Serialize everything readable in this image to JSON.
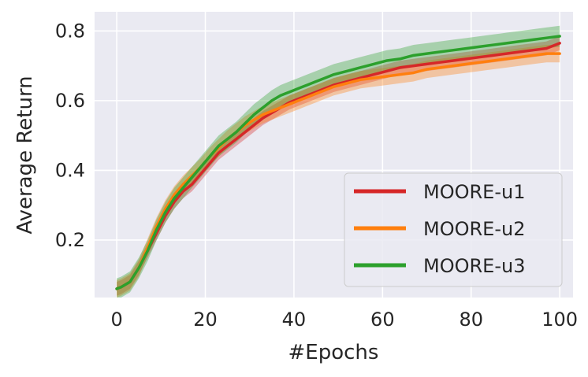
{
  "chart_data": {
    "type": "line",
    "title": "",
    "xlabel": "#Epochs",
    "ylabel": "Average Return",
    "xlim": [
      -5,
      103
    ],
    "ylim": [
      0.035,
      0.855
    ],
    "xticks": [
      0,
      20,
      40,
      60,
      80,
      100
    ],
    "yticks": [
      0.2,
      0.4,
      0.6,
      0.8
    ],
    "xtick_labels": [
      "0",
      "20",
      "40",
      "60",
      "80",
      "100"
    ],
    "ytick_labels": [
      "0.2",
      "0.4",
      "0.6",
      "0.8"
    ],
    "grid": true,
    "legend_position": "lower-right",
    "colors": {
      "background": "#eaeaf2",
      "grid": "#ffffff",
      "text": "#262626"
    },
    "series": [
      {
        "name": "MOORE-u1",
        "color": "#d62728",
        "x": [
          0,
          1,
          3,
          5,
          7,
          9,
          11,
          13,
          15,
          17,
          19,
          21,
          23,
          25,
          27,
          29,
          31,
          33,
          35,
          37,
          39,
          41,
          43,
          45,
          47,
          49,
          52,
          55,
          58,
          61,
          64,
          67,
          70,
          73,
          76,
          79,
          82,
          85,
          88,
          91,
          94,
          97,
          100
        ],
        "y": [
          0.06,
          0.065,
          0.08,
          0.12,
          0.17,
          0.22,
          0.27,
          0.31,
          0.34,
          0.36,
          0.39,
          0.42,
          0.45,
          0.47,
          0.49,
          0.51,
          0.53,
          0.55,
          0.565,
          0.58,
          0.595,
          0.605,
          0.615,
          0.625,
          0.635,
          0.645,
          0.655,
          0.665,
          0.675,
          0.685,
          0.695,
          0.7,
          0.705,
          0.71,
          0.715,
          0.72,
          0.725,
          0.73,
          0.735,
          0.74,
          0.745,
          0.75,
          0.765
        ],
        "band": 0.02
      },
      {
        "name": "MOORE-u2",
        "color": "#ff7f0e",
        "x": [
          0,
          1,
          3,
          5,
          7,
          9,
          11,
          13,
          15,
          17,
          19,
          21,
          23,
          25,
          27,
          29,
          31,
          33,
          35,
          37,
          39,
          41,
          43,
          45,
          47,
          49,
          52,
          55,
          58,
          61,
          64,
          67,
          70,
          73,
          76,
          79,
          82,
          85,
          88,
          91,
          94,
          97,
          100
        ],
        "y": [
          0.06,
          0.065,
          0.08,
          0.12,
          0.18,
          0.24,
          0.29,
          0.33,
          0.36,
          0.385,
          0.41,
          0.44,
          0.465,
          0.49,
          0.51,
          0.53,
          0.545,
          0.56,
          0.57,
          0.58,
          0.59,
          0.6,
          0.61,
          0.62,
          0.63,
          0.64,
          0.65,
          0.66,
          0.665,
          0.67,
          0.675,
          0.68,
          0.69,
          0.695,
          0.7,
          0.705,
          0.71,
          0.715,
          0.72,
          0.725,
          0.73,
          0.735,
          0.735
        ],
        "band": 0.025
      },
      {
        "name": "MOORE-u3",
        "color": "#2ca02c",
        "x": [
          0,
          1,
          3,
          5,
          7,
          9,
          11,
          13,
          15,
          17,
          19,
          21,
          23,
          25,
          27,
          29,
          31,
          33,
          35,
          37,
          39,
          41,
          43,
          45,
          47,
          49,
          52,
          55,
          58,
          61,
          64,
          67,
          70,
          73,
          76,
          79,
          82,
          85,
          88,
          91,
          94,
          97,
          100
        ],
        "y": [
          0.06,
          0.065,
          0.08,
          0.12,
          0.17,
          0.23,
          0.28,
          0.32,
          0.35,
          0.38,
          0.41,
          0.44,
          0.47,
          0.49,
          0.51,
          0.535,
          0.56,
          0.58,
          0.6,
          0.615,
          0.625,
          0.635,
          0.645,
          0.655,
          0.665,
          0.675,
          0.685,
          0.695,
          0.705,
          0.715,
          0.72,
          0.73,
          0.735,
          0.74,
          0.745,
          0.75,
          0.755,
          0.76,
          0.765,
          0.77,
          0.775,
          0.78,
          0.785
        ],
        "band": 0.03
      }
    ]
  }
}
